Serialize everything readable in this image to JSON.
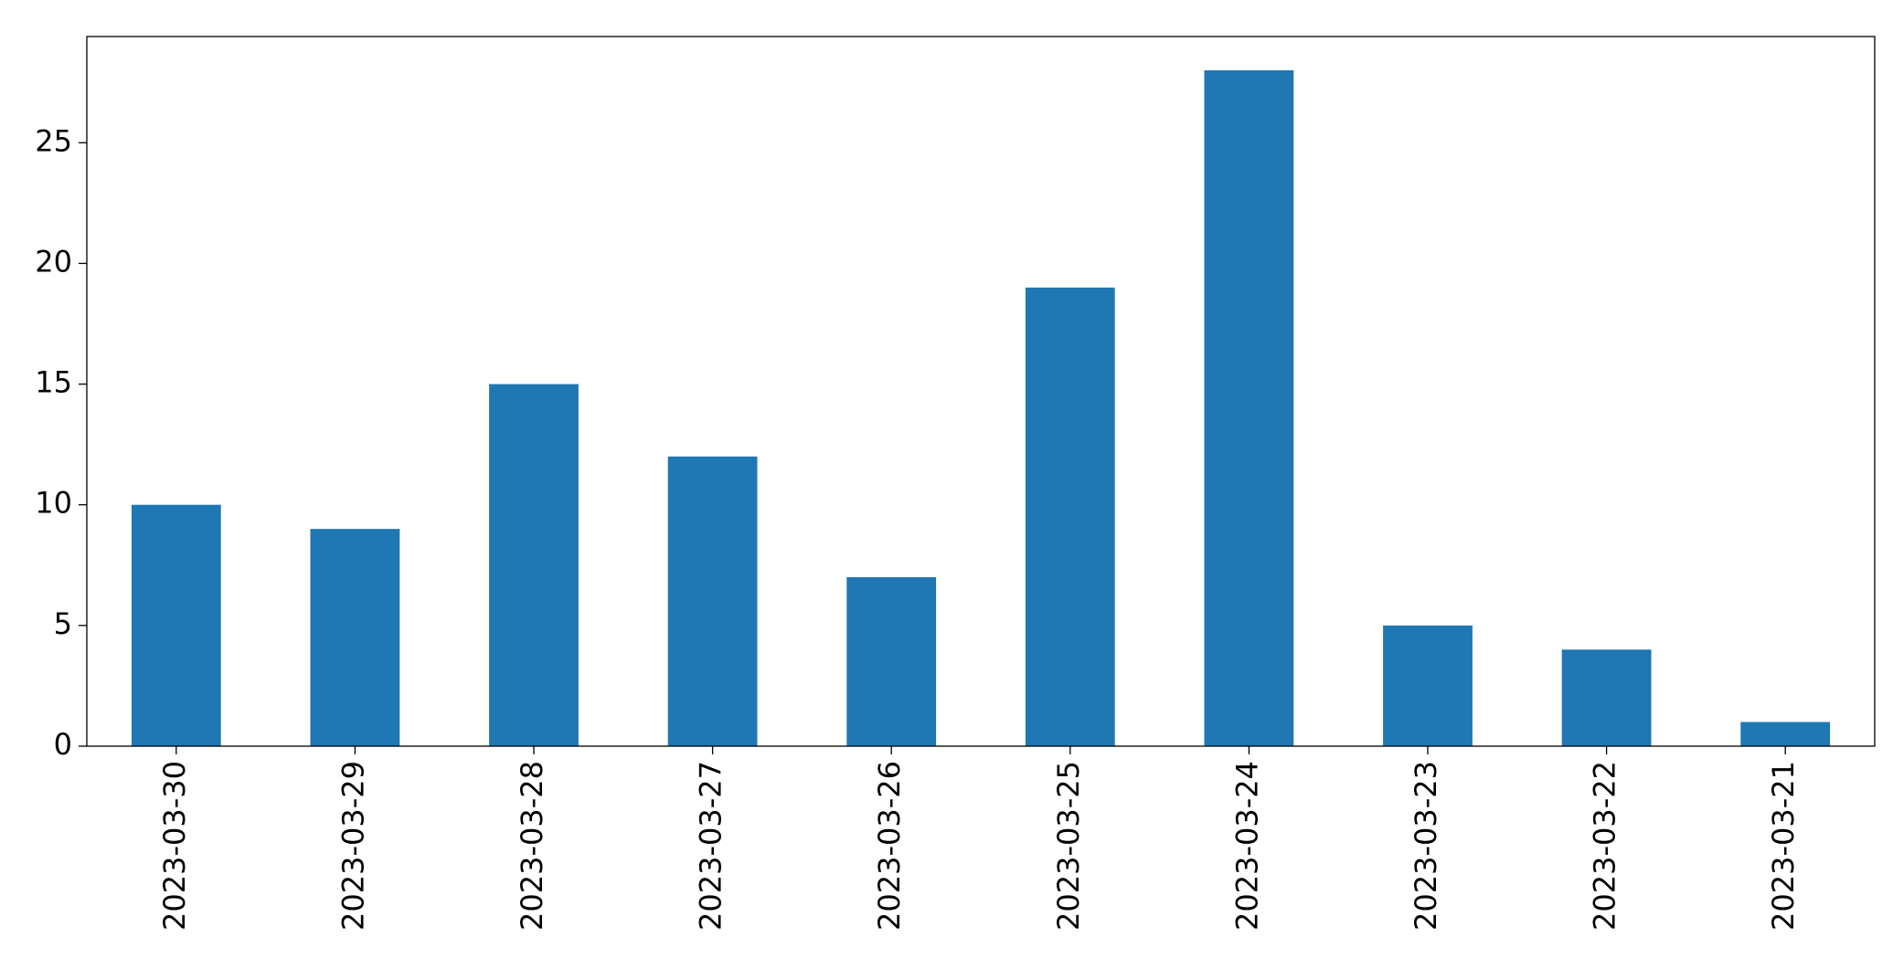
{
  "chart_data": {
    "type": "bar",
    "categories": [
      "2023-03-30",
      "2023-03-29",
      "2023-03-28",
      "2023-03-27",
      "2023-03-26",
      "2023-03-25",
      "2023-03-24",
      "2023-03-23",
      "2023-03-22",
      "2023-03-21"
    ],
    "values": [
      10,
      9,
      15,
      12,
      7,
      19,
      28,
      5,
      4,
      1
    ],
    "color": "#1f77b4",
    "ylim": [
      0,
      29.4
    ],
    "yticks": [
      0,
      5,
      10,
      15,
      20,
      25
    ],
    "grid": false
  }
}
